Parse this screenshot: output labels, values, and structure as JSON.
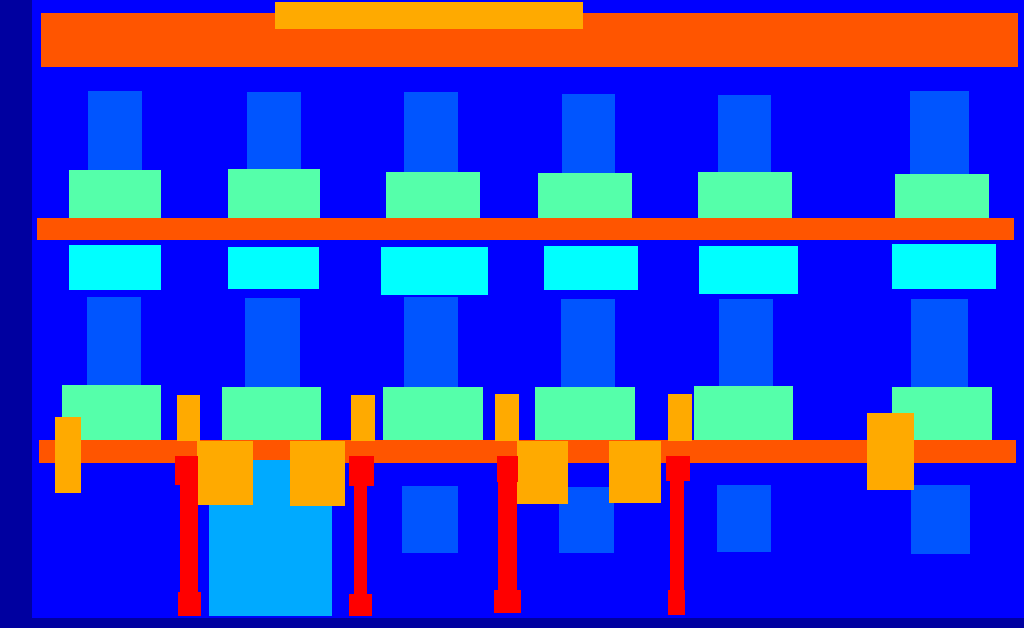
{
  "palette": {
    "frame": "#0000a0",
    "background": "#0000ff",
    "bar": "#ff5500",
    "accent": "#ffaa00",
    "tower": "#0055ff",
    "block": "#55ffaa",
    "panel": "#00ffff",
    "pillar": "#00aaff",
    "post": "#ff0000"
  }
}
